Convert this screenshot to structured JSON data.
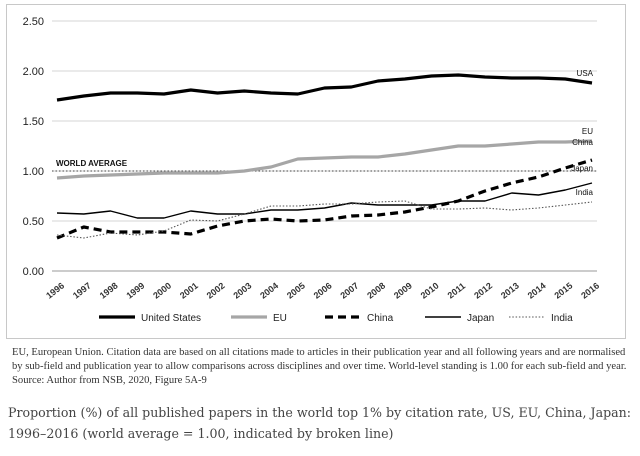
{
  "chart_data": {
    "type": "line",
    "title": "",
    "xlabel": "",
    "ylabel": "",
    "x": [
      "1996",
      "1997",
      "1998",
      "1999",
      "2000",
      "2001",
      "2002",
      "2003",
      "2004",
      "2005",
      "2006",
      "2007",
      "2008",
      "2009",
      "2010",
      "2011",
      "2012",
      "2013",
      "2014",
      "2015",
      "2016"
    ],
    "ylim": [
      0,
      2.5
    ],
    "yticks": [
      "0.00",
      "0.50",
      "1.00",
      "1.50",
      "2.00",
      "2.50"
    ],
    "grid": "horizontal",
    "reference_line": {
      "value": 1.0,
      "label": "WORLD AVERAGE"
    },
    "series": [
      {
        "name": "United States",
        "end_label": "USA",
        "style": "thick-solid",
        "color": "#000000",
        "values": [
          1.71,
          1.75,
          1.78,
          1.78,
          1.77,
          1.81,
          1.78,
          1.8,
          1.78,
          1.77,
          1.83,
          1.84,
          1.9,
          1.92,
          1.95,
          1.96,
          1.94,
          1.93,
          1.93,
          1.92,
          1.88
        ]
      },
      {
        "name": "EU",
        "end_label": "EU",
        "style": "thick-grey",
        "color": "#a6a6a6",
        "values": [
          0.93,
          0.95,
          0.96,
          0.97,
          0.98,
          0.98,
          0.98,
          1.0,
          1.04,
          1.12,
          1.13,
          1.14,
          1.14,
          1.17,
          1.21,
          1.25,
          1.25,
          1.27,
          1.29,
          1.29,
          1.3
        ]
      },
      {
        "name": "China",
        "end_label": "China",
        "style": "thick-dashed",
        "color": "#000000",
        "values": [
          0.33,
          0.44,
          0.39,
          0.39,
          0.39,
          0.37,
          0.45,
          0.5,
          0.52,
          0.5,
          0.51,
          0.55,
          0.56,
          0.59,
          0.64,
          0.7,
          0.8,
          0.88,
          0.94,
          1.03,
          1.11
        ]
      },
      {
        "name": "Japan",
        "end_label": "Japan",
        "style": "thin-solid",
        "color": "#000000",
        "values": [
          0.58,
          0.57,
          0.6,
          0.53,
          0.53,
          0.6,
          0.57,
          0.57,
          0.61,
          0.61,
          0.63,
          0.68,
          0.66,
          0.66,
          0.66,
          0.7,
          0.7,
          0.78,
          0.76,
          0.81,
          0.88
        ]
      },
      {
        "name": "India",
        "end_label": "India",
        "style": "dotted",
        "color": "#555555",
        "values": [
          0.36,
          0.33,
          0.38,
          0.36,
          0.4,
          0.51,
          0.5,
          0.57,
          0.65,
          0.65,
          0.67,
          0.67,
          0.69,
          0.7,
          0.62,
          0.62,
          0.63,
          0.61,
          0.63,
          0.66,
          0.69
        ]
      }
    ]
  },
  "note": "EU, European Union. Citation data are based on all citations made to articles in their publication year and all following years and are normalised by sub-field and publication year to allow comparisons across disciplines and over time. World-level standing is 1.00 for each sub-field and year. Source: Author from NSB, 2020, Figure 5A-9",
  "caption": "Proportion (%) of all published papers in the world top 1% by citation rate, US, EU, China, Japan: 1996–2016 (world average = 1.00, indicated by broken line)"
}
